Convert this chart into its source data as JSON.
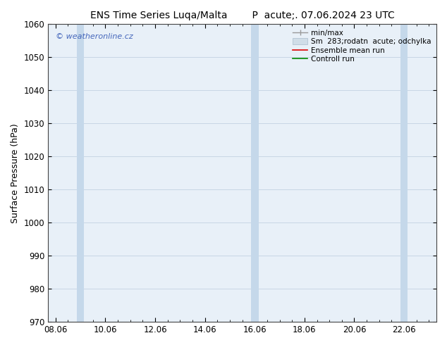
{
  "title_left": "ENS Time Series Luqa/Malta",
  "title_right": "P  acute;. 07.06.2024 23 UTC",
  "ylabel": "Surface Pressure (hPa)",
  "ylim": [
    970,
    1060
  ],
  "yticks": [
    970,
    980,
    990,
    1000,
    1010,
    1020,
    1030,
    1040,
    1050,
    1060
  ],
  "xtick_labels": [
    "08.06",
    "10.06",
    "12.06",
    "14.06",
    "16.06",
    "18.06",
    "20.06",
    "22.06"
  ],
  "xtick_positions": [
    0,
    2,
    4,
    6,
    8,
    10,
    12,
    14
  ],
  "watermark": "© weatheronline.cz",
  "watermark_color": "#4466bb",
  "legend_entries": [
    "min/max",
    "Sm  283;rodatn  acute; odchylka",
    "Ensemble mean run",
    "Controll run"
  ],
  "plot_bg_color": "#e8f0f8",
  "fig_bg_color": "#ffffff",
  "title_fontsize": 10,
  "axis_label_fontsize": 9,
  "tick_fontsize": 8.5,
  "grid_color": "#bbccdd",
  "shaded_bands": [
    {
      "start": 0.85,
      "end": 1.15
    },
    {
      "start": 7.85,
      "end": 8.15
    },
    {
      "start": 13.85,
      "end": 14.15
    }
  ],
  "shaded_band_color": "#c5d8ea",
  "legend_line_colors": [
    "#999999",
    "#cccccc",
    "#dd0000",
    "#008800"
  ]
}
